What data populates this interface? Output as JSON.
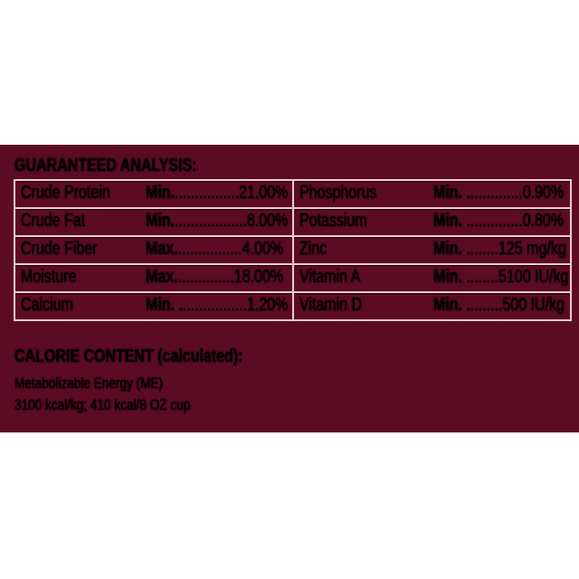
{
  "guaranteed_analysis": {
    "title": "GUARANTEED ANALYSIS:",
    "left": [
      {
        "name": "Crude Protein",
        "qualifier": "Min.",
        "leader": "................",
        "value": "21.00%"
      },
      {
        "name": "Crude Fat",
        "qualifier": "Min.",
        "leader": "..................",
        "value": "8.00%"
      },
      {
        "name": "Crude Fiber",
        "qualifier": "Max.",
        "leader": "................",
        "value": "4.00%"
      },
      {
        "name": "Moisture",
        "qualifier": "Max.",
        "leader": "..............",
        "value": "18.00%"
      },
      {
        "name": "Calcium",
        "qualifier": "Min.",
        "leader": " .................",
        "value": "1.20%"
      }
    ],
    "right": [
      {
        "name": "Phosphorus",
        "qualifier": "Min.",
        "leader": " ..............",
        "value": "0.90%"
      },
      {
        "name": "Potassium",
        "qualifier": "Min.",
        "leader": " ..............",
        "value": "0.80%"
      },
      {
        "name": "Zinc",
        "qualifier": "Min.",
        "leader": " ........",
        "value": "125 mg/kg"
      },
      {
        "name": "Vitamin A",
        "qualifier": "Min.",
        "leader": " ........",
        "value": "5100 IU/kg"
      },
      {
        "name": "Vitamin D",
        "qualifier": "Min.",
        "leader": " .........",
        "value": "500 IU/kg"
      }
    ]
  },
  "calorie_content": {
    "title": "CALORIE CONTENT (calculated):",
    "line1": "Metabolizable Energy (ME)",
    "line2": "3100 kcal/kg; 410 kcal/8 OZ cup"
  },
  "colors": {
    "background": "#5c0b24",
    "text": "#f4d6d6"
  }
}
